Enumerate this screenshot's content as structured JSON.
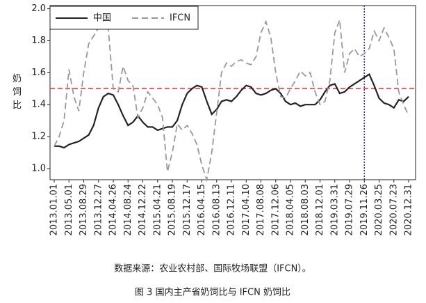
{
  "chart_data": {
    "type": "line",
    "y_label": "奶饲比",
    "categories": [
      "2013.01.01",
      null,
      null,
      "2013.05.01",
      null,
      null,
      "2013.08.29",
      null,
      null,
      "2013.12.27",
      null,
      null,
      "2014.04.26",
      null,
      null,
      "2014.08.24",
      null,
      null,
      "2014.12.22",
      null,
      null,
      "2015.04.21",
      null,
      null,
      "2015.08.19",
      null,
      null,
      "2015.12.17",
      null,
      null,
      "2016.04.15",
      null,
      null,
      "2016.08.13",
      null,
      null,
      "2016.12.11",
      null,
      null,
      "2017.04.10",
      null,
      null,
      "2017.08.08",
      null,
      null,
      "2017.12.06",
      null,
      null,
      "2018.04.05",
      null,
      null,
      "2018.08.03",
      null,
      null,
      "2018.12.01",
      null,
      null,
      "2019.03.31",
      null,
      null,
      "2019.07.29",
      null,
      null,
      "2019.11.26",
      null,
      null,
      "2020.03.25",
      null,
      null,
      "2020.07.23",
      null,
      null,
      "2020.12.31"
    ],
    "series": [
      {
        "name": "中国",
        "color": "#222222",
        "dash": "solid",
        "values": [
          1.14,
          1.14,
          1.13,
          1.15,
          1.16,
          1.17,
          1.19,
          1.21,
          1.27,
          1.38,
          1.45,
          1.47,
          1.46,
          1.4,
          1.33,
          1.27,
          1.29,
          1.33,
          1.29,
          1.26,
          1.26,
          1.24,
          1.25,
          1.26,
          1.26,
          1.3,
          1.4,
          1.47,
          1.5,
          1.52,
          1.51,
          1.42,
          1.34,
          1.37,
          1.42,
          1.43,
          1.42,
          1.45,
          1.49,
          1.52,
          1.51,
          1.47,
          1.46,
          1.47,
          1.49,
          1.5,
          1.47,
          1.42,
          1.4,
          1.41,
          1.39,
          1.4,
          1.4,
          1.4,
          1.43,
          1.48,
          1.52,
          1.53,
          1.47,
          1.48,
          1.51,
          1.53,
          1.55,
          1.57,
          1.59,
          1.52,
          1.44,
          1.41,
          1.4,
          1.38,
          1.43,
          1.42,
          1.45
        ]
      },
      {
        "name": "IFCN",
        "color": "#999999",
        "dash": "dashed",
        "values": [
          1.14,
          1.2,
          1.3,
          1.62,
          1.45,
          1.36,
          1.6,
          1.78,
          1.83,
          1.88,
          1.93,
          1.87,
          1.5,
          1.48,
          1.64,
          1.55,
          1.52,
          1.32,
          1.38,
          1.48,
          1.44,
          1.4,
          1.32,
          0.98,
          1.1,
          1.28,
          1.24,
          1.27,
          1.22,
          1.15,
          1.02,
          0.93,
          1.1,
          1.35,
          1.6,
          1.66,
          1.64,
          1.67,
          1.68,
          1.66,
          1.65,
          1.7,
          1.85,
          1.92,
          1.82,
          1.6,
          1.45,
          1.44,
          1.5,
          1.55,
          1.61,
          1.58,
          1.6,
          1.48,
          1.4,
          1.42,
          1.55,
          1.85,
          1.93,
          1.6,
          1.72,
          1.75,
          1.7,
          1.72,
          1.75,
          1.86,
          1.8,
          1.88,
          1.82,
          1.75,
          1.48,
          1.4,
          1.33
        ]
      }
    ],
    "ylim": [
      0.93,
      2.02
    ],
    "yticks": [
      {
        "value": 1.0,
        "label": "1.0"
      },
      1.2,
      1.4,
      1.6,
      1.8,
      {
        "value": 2.0,
        "label": "2.0"
      }
    ],
    "reference_y": {
      "value": 1.5,
      "color": "#e04848"
    },
    "reference_x": {
      "category": "2019.11.26",
      "color": "#3333cc"
    },
    "legend": "top-left",
    "source": "数据来源：农业农村部、国际牧场联盟（IFCN）。",
    "caption": "图 3   国内主产省奶饲比与 IFCN 奶饲比"
  }
}
